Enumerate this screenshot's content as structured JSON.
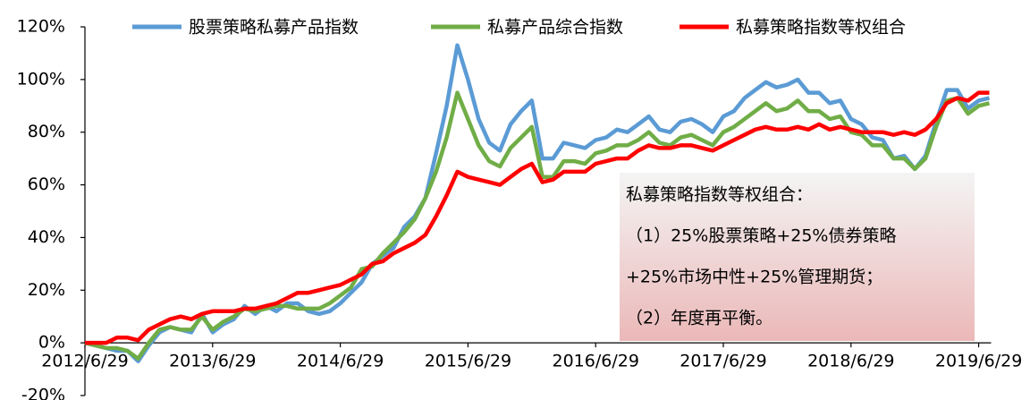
{
  "chart_data": {
    "type": "line",
    "categories": [
      "2012/6/29",
      null,
      null,
      null,
      null,
      null,
      null,
      null,
      null,
      null,
      null,
      null,
      "2013/6/29",
      null,
      null,
      null,
      null,
      null,
      null,
      null,
      null,
      null,
      null,
      null,
      "2014/6/29",
      null,
      null,
      null,
      null,
      null,
      null,
      null,
      null,
      null,
      null,
      null,
      "2015/6/29",
      null,
      null,
      null,
      null,
      null,
      null,
      null,
      null,
      null,
      null,
      null,
      "2016/6/29",
      null,
      null,
      null,
      null,
      null,
      null,
      null,
      null,
      null,
      null,
      null,
      "2017/6/29",
      null,
      null,
      null,
      null,
      null,
      null,
      null,
      null,
      null,
      null,
      null,
      "2018/6/29",
      null,
      null,
      null,
      null,
      null,
      null,
      null,
      null,
      null,
      null,
      null,
      "2019/6/29",
      null
    ],
    "series": [
      {
        "name": "股票策略私募产品指数",
        "color": "#5b9bd5",
        "values": [
          0,
          -1,
          -2,
          -3,
          -3,
          -7,
          -1,
          4,
          6,
          5,
          4,
          11,
          4,
          7,
          9,
          14,
          11,
          14,
          12,
          15,
          15,
          12,
          11,
          12,
          15,
          19,
          23,
          30,
          33,
          36,
          44,
          48,
          55,
          72,
          90,
          113,
          100,
          85,
          76,
          73,
          83,
          88,
          92,
          70,
          70,
          76,
          75,
          74,
          77,
          78,
          81,
          80,
          83,
          86,
          81,
          80,
          84,
          85,
          83,
          80,
          86,
          88,
          93,
          96,
          99,
          97,
          98,
          100,
          95,
          95,
          91,
          92,
          85,
          83,
          78,
          77,
          70,
          71,
          66,
          71,
          84,
          96,
          96,
          89,
          92,
          93
        ]
      },
      {
        "name": "私募产品综合指数",
        "color": "#70ad47",
        "values": [
          0,
          -1,
          -2,
          -2,
          -3,
          -6,
          0,
          5,
          6,
          5,
          5,
          10,
          5,
          8,
          10,
          13,
          12,
          13,
          14,
          14,
          13,
          13,
          13,
          15,
          18,
          21,
          28,
          29,
          34,
          38,
          42,
          47,
          55,
          65,
          78,
          95,
          85,
          75,
          69,
          67,
          74,
          78,
          82,
          63,
          63,
          69,
          69,
          68,
          72,
          73,
          75,
          75,
          77,
          80,
          76,
          75,
          78,
          79,
          77,
          75,
          80,
          82,
          85,
          88,
          91,
          88,
          89,
          92,
          88,
          88,
          85,
          86,
          80,
          79,
          75,
          75,
          70,
          70,
          66,
          70,
          82,
          92,
          93,
          87,
          90,
          91
        ]
      },
      {
        "name": "私募策略指数等权组合",
        "color": "#ff0000",
        "values": [
          0,
          0,
          0,
          2,
          2,
          1,
          5,
          7,
          9,
          10,
          9,
          11,
          12,
          12,
          12,
          13,
          13,
          14,
          15,
          17,
          19,
          19,
          20,
          21,
          22,
          24,
          26,
          30,
          31,
          34,
          36,
          38,
          41,
          48,
          56,
          65,
          63,
          62,
          61,
          60,
          63,
          66,
          68,
          61,
          62,
          65,
          65,
          65,
          68,
          69,
          70,
          70,
          73,
          75,
          74,
          74,
          75,
          75,
          74,
          73,
          75,
          77,
          79,
          81,
          82,
          81,
          81,
          82,
          81,
          83,
          81,
          82,
          81,
          80,
          80,
          80,
          79,
          80,
          79,
          81,
          85,
          91,
          93,
          92,
          95,
          95
        ]
      }
    ],
    "ylim": [
      -20,
      120
    ],
    "yticks": [
      {
        "value": -20,
        "label": "-20%"
      },
      {
        "value": 0,
        "label": "0%"
      },
      {
        "value": 20,
        "label": "20%"
      },
      {
        "value": 40,
        "label": "40%"
      },
      {
        "value": 60,
        "label": "60%"
      },
      {
        "value": 80,
        "label": "80%"
      },
      {
        "value": 100,
        "label": "100%"
      },
      {
        "value": 120,
        "label": "120%"
      }
    ],
    "grid": false,
    "legend": "top",
    "annotation": [
      "私募策略指数等权组合：",
      "（1）25%股票策略+25%债券策略",
      "+25%市场中性+25%管理期货；",
      "（2）年度再平衡。"
    ]
  }
}
